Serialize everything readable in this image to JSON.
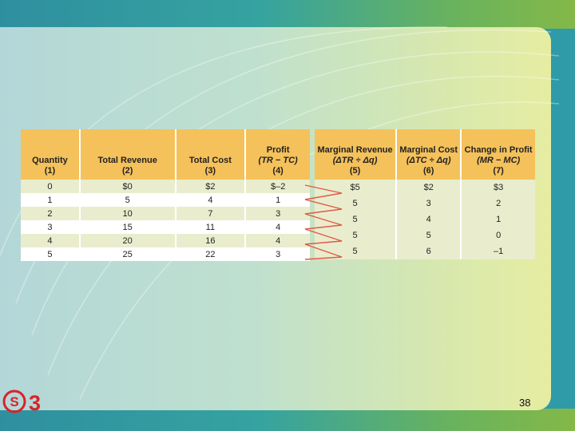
{
  "left_table": {
    "headers": [
      {
        "title": "Quantity",
        "num": "(1)"
      },
      {
        "title": "Total Revenue",
        "num": "(2)"
      },
      {
        "title": "Total Cost",
        "num": "(3)"
      },
      {
        "title": "Profit",
        "formula": "(TR − TC)",
        "num": "(4)"
      }
    ],
    "rows": [
      [
        "0",
        "$0",
        "$2",
        "$–2"
      ],
      [
        "1",
        "5",
        "4",
        "1"
      ],
      [
        "2",
        "10",
        "7",
        "3"
      ],
      [
        "3",
        "15",
        "11",
        "4"
      ],
      [
        "4",
        "20",
        "16",
        "4"
      ],
      [
        "5",
        "25",
        "22",
        "3"
      ]
    ]
  },
  "right_table": {
    "headers": [
      {
        "title": "Marginal Revenue",
        "formula": "(ΔTR ÷ Δq)",
        "num": "(5)"
      },
      {
        "title": "Marginal Cost",
        "formula": "(ΔTC ÷ Δq)",
        "num": "(6)"
      },
      {
        "title": "Change in Profit",
        "formula": "(MR − MC)",
        "num": "(7)"
      }
    ],
    "rows": [
      [
        "$5",
        "$2",
        "$3"
      ],
      [
        "5",
        "3",
        "2"
      ],
      [
        "5",
        "4",
        "1"
      ],
      [
        "5",
        "5",
        "0"
      ],
      [
        "5",
        "6",
        "–1"
      ]
    ]
  },
  "logo": {
    "letter": "S",
    "number": "3"
  },
  "page_number": "38",
  "colors": {
    "header": "#f5c15a",
    "band": "#e9edcd",
    "arrow": "#e05a4a",
    "logo": "#d9232a"
  }
}
